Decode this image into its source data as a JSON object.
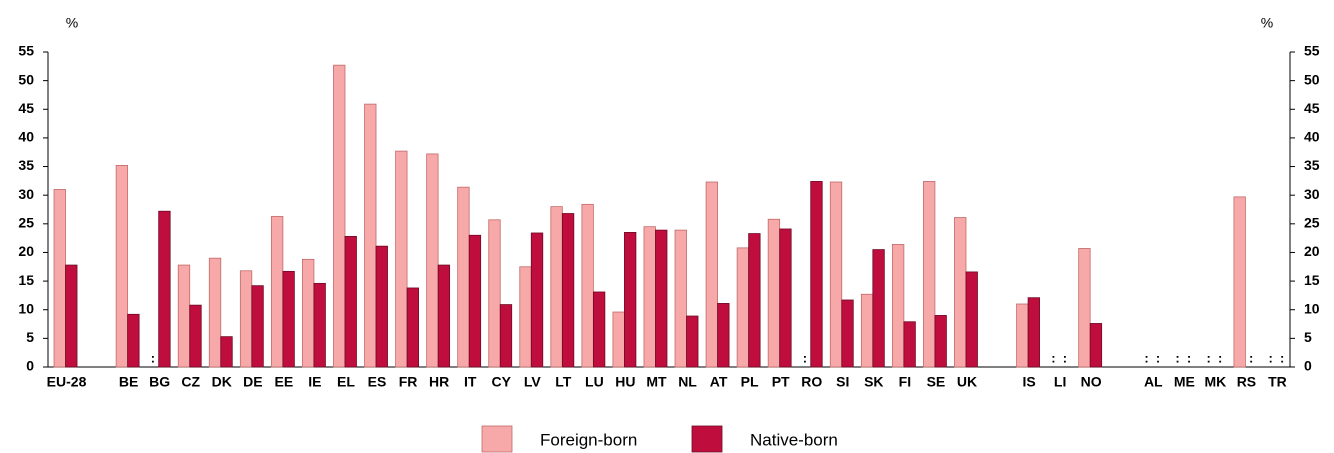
{
  "chart_data": {
    "type": "bar",
    "y_label": "%",
    "y2_label": "%",
    "categories": [
      "EU-28",
      null,
      "BE",
      "BG",
      "CZ",
      "DK",
      "DE",
      "EE",
      "IE",
      "EL",
      "ES",
      "FR",
      "HR",
      "IT",
      "CY",
      "LV",
      "LT",
      "LU",
      "HU",
      "MT",
      "NL",
      "AT",
      "PL",
      "PT",
      "RO",
      "SI",
      "SK",
      "FI",
      "SE",
      "UK",
      null,
      "IS",
      "LI",
      "NO",
      null,
      "AL",
      "ME",
      "MK",
      "RS",
      "TR"
    ],
    "series": [
      {
        "name": "Foreign-born",
        "color": "#f7a8a8",
        "stroke": "#c26a6a",
        "values": [
          31,
          null,
          35.2,
          null,
          17.8,
          19,
          16.8,
          26.3,
          18.8,
          52.7,
          45.9,
          37.7,
          37.2,
          31.4,
          25.7,
          17.5,
          28,
          28.4,
          9.6,
          24.5,
          23.9,
          32.3,
          20.8,
          25.8,
          null,
          32.3,
          12.7,
          21.4,
          32.4,
          26.1,
          null,
          11,
          null,
          20.7,
          null,
          null,
          null,
          null,
          29.7,
          null
        ],
        "value_labels": [
          null,
          null,
          null,
          ":",
          null,
          null,
          null,
          null,
          null,
          null,
          null,
          null,
          null,
          null,
          null,
          null,
          null,
          null,
          null,
          null,
          null,
          null,
          null,
          null,
          ":",
          null,
          null,
          null,
          null,
          null,
          null,
          null,
          ":",
          null,
          null,
          ":",
          ":",
          ":",
          null,
          ":"
        ]
      },
      {
        "name": "Native-born",
        "color": "#bf0d3e",
        "stroke": "#6e0a24",
        "values": [
          17.8,
          null,
          9.2,
          27.2,
          10.8,
          5.3,
          14.2,
          16.7,
          14.6,
          22.8,
          21.1,
          13.8,
          17.8,
          23,
          10.9,
          23.4,
          26.8,
          13.1,
          23.5,
          23.9,
          8.9,
          11.1,
          23.3,
          24.1,
          32.4,
          11.7,
          20.5,
          7.9,
          9,
          16.6,
          null,
          12.1,
          null,
          7.6,
          null,
          null,
          null,
          null,
          null,
          null
        ],
        "value_labels": [
          null,
          null,
          null,
          null,
          null,
          null,
          null,
          null,
          null,
          null,
          null,
          null,
          null,
          null,
          null,
          null,
          null,
          null,
          null,
          null,
          null,
          null,
          null,
          null,
          null,
          null,
          null,
          null,
          null,
          null,
          null,
          null,
          ":",
          null,
          null,
          ":",
          ":",
          ":",
          ":",
          ":"
        ]
      }
    ],
    "ylim": [
      0,
      55
    ],
    "yticks": [
      0,
      5,
      10,
      15,
      20,
      25,
      30,
      35,
      40,
      45,
      50,
      55
    ],
    "y2lim": [
      0,
      55
    ],
    "y2ticks": [
      0,
      5,
      10,
      15,
      20,
      25,
      30,
      35,
      40,
      45,
      50,
      55
    ],
    "legend": "bottom"
  }
}
